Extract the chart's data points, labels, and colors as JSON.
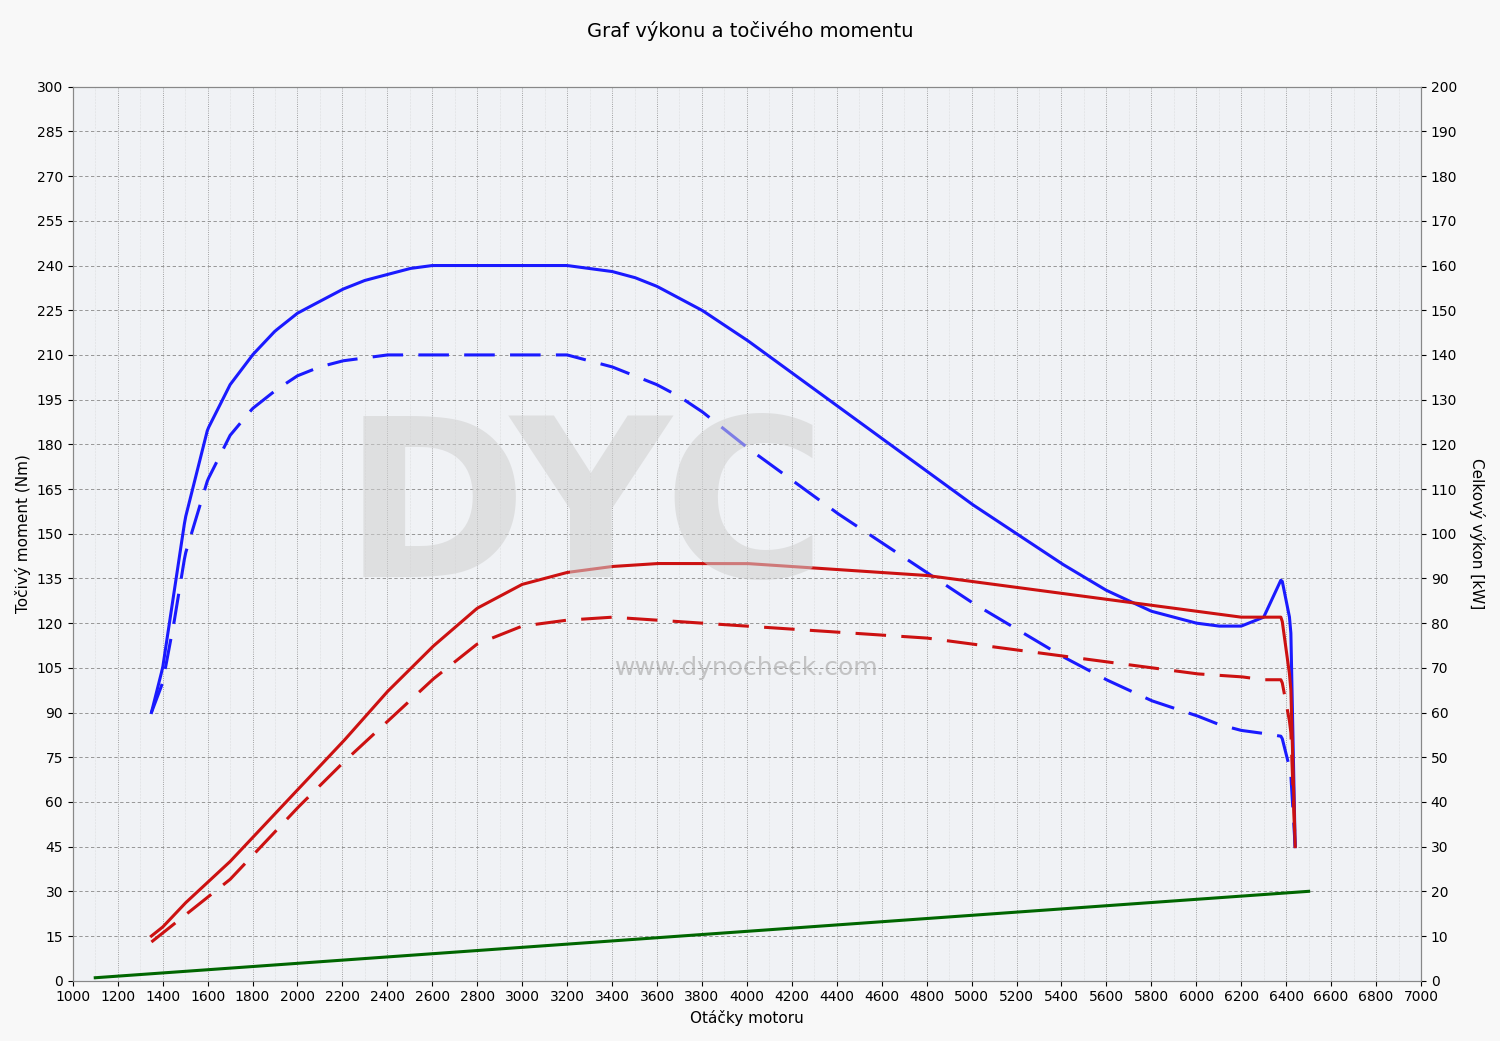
{
  "title": "Graf výkonu a točivého momentu",
  "xlabel": "Otáčky motoru",
  "ylabel_left": "Točivý moment (Nm)",
  "ylabel_right": "Celkový výkon [kW]",
  "ylim_left": [
    0,
    300
  ],
  "ylim_right": [
    0,
    200
  ],
  "xlim": [
    1000,
    7000
  ],
  "yticks_left": [
    0,
    15,
    30,
    45,
    60,
    75,
    90,
    105,
    120,
    135,
    150,
    165,
    180,
    195,
    210,
    225,
    240,
    255,
    270,
    285,
    300
  ],
  "yticks_right": [
    0,
    10,
    20,
    30,
    40,
    50,
    60,
    70,
    80,
    90,
    100,
    110,
    120,
    130,
    140,
    150,
    160,
    170,
    180,
    190,
    200
  ],
  "xticks": [
    1000,
    1200,
    1400,
    1600,
    1800,
    2000,
    2200,
    2400,
    2600,
    2800,
    3000,
    3200,
    3400,
    3600,
    3800,
    4000,
    4200,
    4400,
    4600,
    4800,
    5000,
    5200,
    5400,
    5600,
    5800,
    6000,
    6200,
    6400,
    6600,
    6800,
    7000
  ],
  "blue_solid_x": [
    1350,
    1400,
    1450,
    1500,
    1600,
    1700,
    1800,
    1900,
    2000,
    2100,
    2200,
    2300,
    2400,
    2500,
    2600,
    2700,
    2800,
    2900,
    3000,
    3100,
    3200,
    3300,
    3400,
    3500,
    3600,
    3700,
    3800,
    3900,
    4000,
    4200,
    4400,
    4600,
    4800,
    5000,
    5200,
    5400,
    5600,
    5800,
    6000,
    6100,
    6200,
    6300,
    6380,
    6420,
    6440
  ],
  "blue_solid_y": [
    90,
    105,
    130,
    155,
    185,
    200,
    210,
    218,
    224,
    228,
    232,
    235,
    237,
    239,
    240,
    240,
    240,
    240,
    240,
    240,
    240,
    239,
    238,
    236,
    233,
    229,
    225,
    220,
    215,
    204,
    193,
    182,
    171,
    160,
    150,
    140,
    131,
    124,
    120,
    119,
    119,
    122,
    135,
    120,
    45
  ],
  "blue_dashed_x": [
    1350,
    1400,
    1450,
    1500,
    1600,
    1700,
    1800,
    1900,
    2000,
    2100,
    2200,
    2300,
    2400,
    2500,
    2600,
    2700,
    2800,
    2900,
    3000,
    3100,
    3200,
    3300,
    3400,
    3500,
    3600,
    3700,
    3800,
    3900,
    4000,
    4200,
    4400,
    4600,
    4800,
    5000,
    5200,
    5400,
    5600,
    5800,
    6000,
    6100,
    6200,
    6300,
    6380,
    6420,
    6440
  ],
  "blue_dashed_y": [
    90,
    100,
    120,
    143,
    168,
    183,
    192,
    198,
    203,
    206,
    208,
    209,
    210,
    210,
    210,
    210,
    210,
    210,
    210,
    210,
    210,
    208,
    206,
    203,
    200,
    196,
    191,
    185,
    179,
    168,
    157,
    147,
    137,
    127,
    118,
    109,
    101,
    94,
    89,
    86,
    84,
    83,
    82,
    70,
    45
  ],
  "red_solid_x": [
    1350,
    1400,
    1450,
    1500,
    1600,
    1700,
    1800,
    1900,
    2000,
    2200,
    2400,
    2600,
    2800,
    3000,
    3200,
    3400,
    3600,
    3800,
    4000,
    4200,
    4400,
    4600,
    4800,
    5000,
    5200,
    5400,
    5600,
    5800,
    6000,
    6200,
    6300,
    6380,
    6420,
    6440
  ],
  "red_solid_y": [
    15,
    18,
    22,
    26,
    33,
    40,
    48,
    56,
    64,
    80,
    97,
    112,
    125,
    133,
    137,
    139,
    140,
    140,
    140,
    139,
    138,
    137,
    136,
    134,
    132,
    130,
    128,
    126,
    124,
    122,
    122,
    122,
    100,
    45
  ],
  "red_dashed_x": [
    1350,
    1400,
    1450,
    1500,
    1600,
    1700,
    1800,
    1900,
    2000,
    2200,
    2400,
    2600,
    2800,
    3000,
    3200,
    3400,
    3600,
    3800,
    4000,
    4200,
    4400,
    4600,
    4800,
    5000,
    5200,
    5400,
    5600,
    5800,
    6000,
    6200,
    6300,
    6380,
    6420,
    6440
  ],
  "red_dashed_y": [
    13,
    16,
    19,
    22,
    28,
    34,
    42,
    50,
    58,
    73,
    87,
    101,
    113,
    119,
    121,
    122,
    121,
    120,
    119,
    118,
    117,
    116,
    115,
    113,
    111,
    109,
    107,
    105,
    103,
    102,
    101,
    101,
    85,
    45
  ],
  "green_x": [
    1100,
    6500
  ],
  "green_y": [
    1,
    30
  ],
  "bg_color": "#f8f8f8",
  "plot_bg_color": "#f0f2f5",
  "grid_major_color": "#888888",
  "grid_minor_color": "#cccccc",
  "blue_color": "#1a1aff",
  "red_color": "#cc1111",
  "green_color": "#006600",
  "watermark_text": "www.dynocheck.com",
  "watermark_logo": "DYC",
  "title_fontsize": 14,
  "label_fontsize": 11,
  "tick_fontsize": 10,
  "line_width": 2.2
}
